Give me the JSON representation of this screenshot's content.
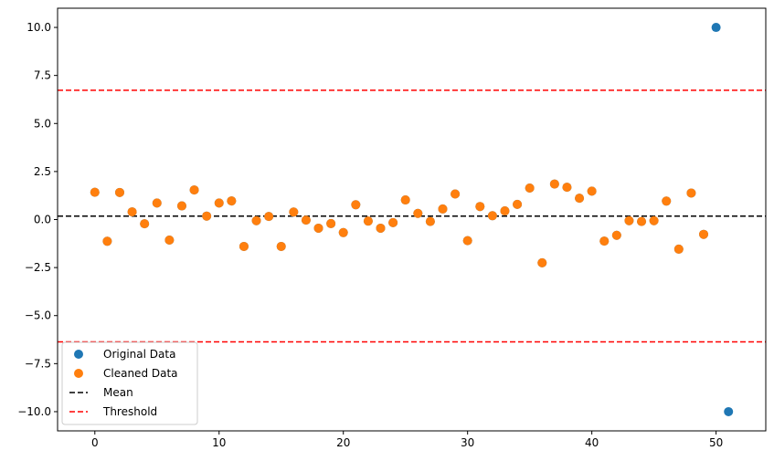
{
  "chart_data": {
    "type": "scatter",
    "title": "",
    "xlabel": "",
    "ylabel": "",
    "xlim": [
      -3,
      54
    ],
    "ylim": [
      -11,
      11
    ],
    "x_ticks": [
      0,
      10,
      20,
      30,
      40,
      50
    ],
    "x_tick_labels": [
      "0",
      "10",
      "20",
      "30",
      "40",
      "50"
    ],
    "y_ticks": [
      10.0,
      7.5,
      5.0,
      2.5,
      0.0,
      -2.5,
      -5.0,
      -7.5,
      -10.0
    ],
    "y_tick_labels": [
      "10.0",
      "7.5",
      "5.0",
      "2.5",
      "0.0",
      "−2.5",
      "−5.0",
      "−7.5",
      "−10.0"
    ],
    "grid": false,
    "legend_position": "lower-left",
    "series": [
      {
        "name": "Original Data",
        "kind": "scatter",
        "color": "#1f77b4",
        "x": [
          0,
          1,
          2,
          3,
          4,
          5,
          6,
          7,
          8,
          9,
          10,
          11,
          12,
          13,
          14,
          15,
          16,
          17,
          18,
          19,
          20,
          21,
          22,
          23,
          24,
          25,
          26,
          27,
          28,
          29,
          30,
          31,
          32,
          33,
          34,
          35,
          36,
          37,
          38,
          39,
          40,
          41,
          42,
          43,
          44,
          45,
          46,
          47,
          48,
          49,
          50,
          51
        ],
        "y": [
          1.42,
          -1.13,
          1.41,
          0.4,
          -0.22,
          0.86,
          -1.07,
          0.71,
          1.54,
          0.18,
          0.86,
          0.97,
          -1.4,
          -0.06,
          0.16,
          -1.4,
          0.39,
          -0.03,
          -0.45,
          -0.21,
          -0.68,
          0.77,
          -0.08,
          -0.45,
          -0.16,
          1.02,
          0.32,
          -0.1,
          0.55,
          1.33,
          -1.1,
          0.68,
          0.2,
          0.45,
          0.79,
          1.64,
          -2.25,
          1.85,
          1.68,
          1.11,
          1.48,
          -1.12,
          -0.82,
          -0.06,
          -0.1,
          -0.06,
          0.96,
          -1.54,
          1.38,
          -0.77,
          10.0,
          -10.0
        ]
      },
      {
        "name": "Cleaned Data",
        "kind": "scatter",
        "color": "#ff7f0e",
        "x": [
          0,
          1,
          2,
          3,
          4,
          5,
          6,
          7,
          8,
          9,
          10,
          11,
          12,
          13,
          14,
          15,
          16,
          17,
          18,
          19,
          20,
          21,
          22,
          23,
          24,
          25,
          26,
          27,
          28,
          29,
          30,
          31,
          32,
          33,
          34,
          35,
          36,
          37,
          38,
          39,
          40,
          41,
          42,
          43,
          44,
          45,
          46,
          47,
          48,
          49
        ],
        "y": [
          1.42,
          -1.13,
          1.41,
          0.4,
          -0.22,
          0.86,
          -1.07,
          0.71,
          1.54,
          0.18,
          0.86,
          0.97,
          -1.4,
          -0.06,
          0.16,
          -1.4,
          0.39,
          -0.03,
          -0.45,
          -0.21,
          -0.68,
          0.77,
          -0.08,
          -0.45,
          -0.16,
          1.02,
          0.32,
          -0.1,
          0.55,
          1.33,
          -1.1,
          0.68,
          0.2,
          0.45,
          0.79,
          1.64,
          -2.25,
          1.85,
          1.68,
          1.11,
          1.48,
          -1.12,
          -0.82,
          -0.06,
          -0.1,
          -0.06,
          0.96,
          -1.54,
          1.38,
          -0.77
        ]
      },
      {
        "name": "Mean",
        "kind": "hline",
        "color": "#000000",
        "style": "dashed",
        "y": [
          0.18
        ]
      },
      {
        "name": "Threshold",
        "kind": "hline",
        "color": "#ff0000",
        "style": "dashed",
        "y": [
          6.73,
          -6.37
        ]
      }
    ]
  }
}
